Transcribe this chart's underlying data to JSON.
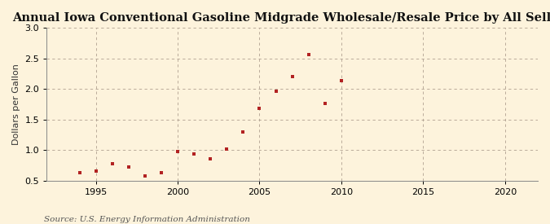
{
  "title": "Annual Iowa Conventional Gasoline Midgrade Wholesale/Resale Price by All Sellers",
  "ylabel": "Dollars per Gallon",
  "source": "Source: U.S. Energy Information Administration",
  "xlim": [
    1992,
    2022
  ],
  "ylim": [
    0.5,
    3.0
  ],
  "yticks": [
    0.5,
    1.0,
    1.5,
    2.0,
    2.5,
    3.0
  ],
  "xticks": [
    1995,
    2000,
    2005,
    2010,
    2015,
    2020
  ],
  "years": [
    1994,
    1995,
    1996,
    1997,
    1998,
    1999,
    2000,
    2001,
    2002,
    2003,
    2004,
    2005,
    2006,
    2007,
    2008,
    2009,
    2010
  ],
  "values": [
    0.63,
    0.65,
    0.77,
    0.72,
    0.57,
    0.63,
    0.97,
    0.93,
    0.86,
    1.01,
    1.3,
    1.68,
    1.97,
    2.2,
    2.56,
    1.76,
    2.14
  ],
  "marker_color": "#b22222",
  "marker": "s",
  "marker_size": 3.5,
  "background_color": "#fdf3dc",
  "grid_color": "#b0a090",
  "title_fontsize": 10.5,
  "label_fontsize": 8,
  "tick_fontsize": 8,
  "source_fontsize": 7.5
}
